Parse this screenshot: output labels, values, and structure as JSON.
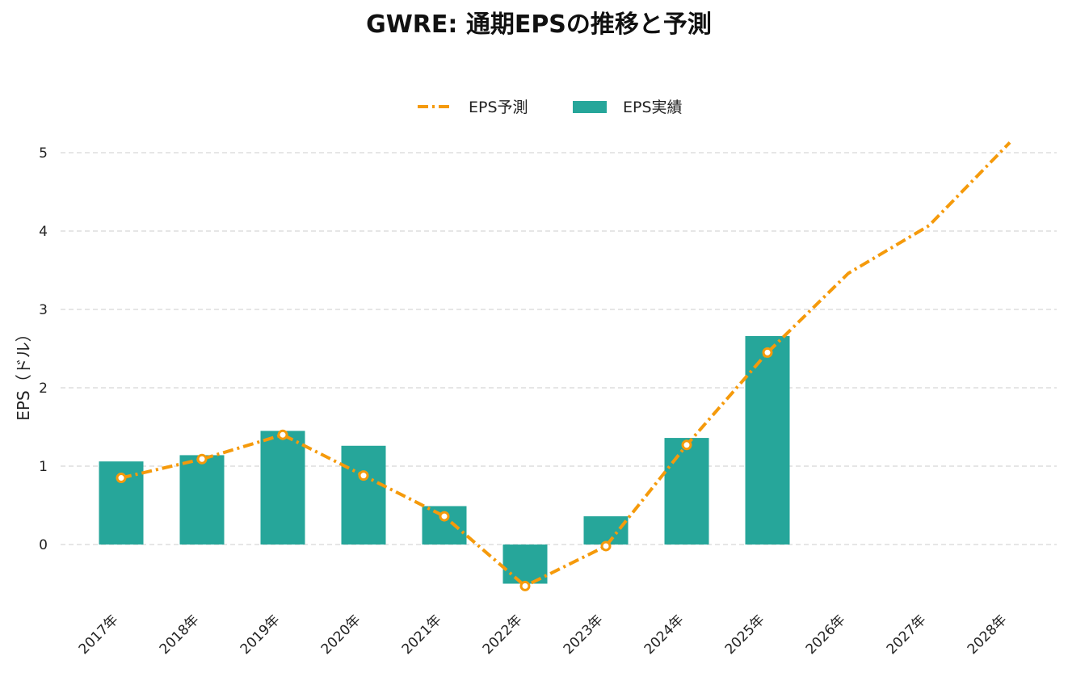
{
  "chart_data": {
    "type": "bar",
    "title": "GWRE: 通期EPSの推移と予測",
    "ylabel": "EPS（ドル）",
    "xlabel": "",
    "categories": [
      "2017年",
      "2018年",
      "2019年",
      "2020年",
      "2021年",
      "2022年",
      "2023年",
      "2024年",
      "2025年",
      "2026年",
      "2027年",
      "2028年"
    ],
    "series": [
      {
        "name": "EPS実績",
        "type": "bar",
        "color": "#26a69a",
        "values": [
          1.06,
          1.14,
          1.45,
          1.26,
          0.49,
          -0.5,
          0.36,
          1.36,
          2.66,
          null,
          null,
          null
        ]
      },
      {
        "name": "EPS予測",
        "type": "line",
        "style": "dashed",
        "color": "#f59a0b",
        "values": [
          0.85,
          1.09,
          1.4,
          0.88,
          0.36,
          -0.53,
          -0.02,
          1.27,
          2.45,
          3.46,
          4.07,
          5.13
        ],
        "markers": [
          true,
          true,
          true,
          true,
          true,
          true,
          true,
          true,
          true,
          false,
          false,
          false
        ]
      }
    ],
    "yticks": [
      0,
      1,
      2,
      3,
      4,
      5
    ],
    "ylim": [
      -0.8,
      5.5
    ],
    "grid": true,
    "grid_axis": "y",
    "legend": {
      "position": "top-center",
      "entries": [
        "EPS予測",
        "EPS実績"
      ]
    }
  }
}
